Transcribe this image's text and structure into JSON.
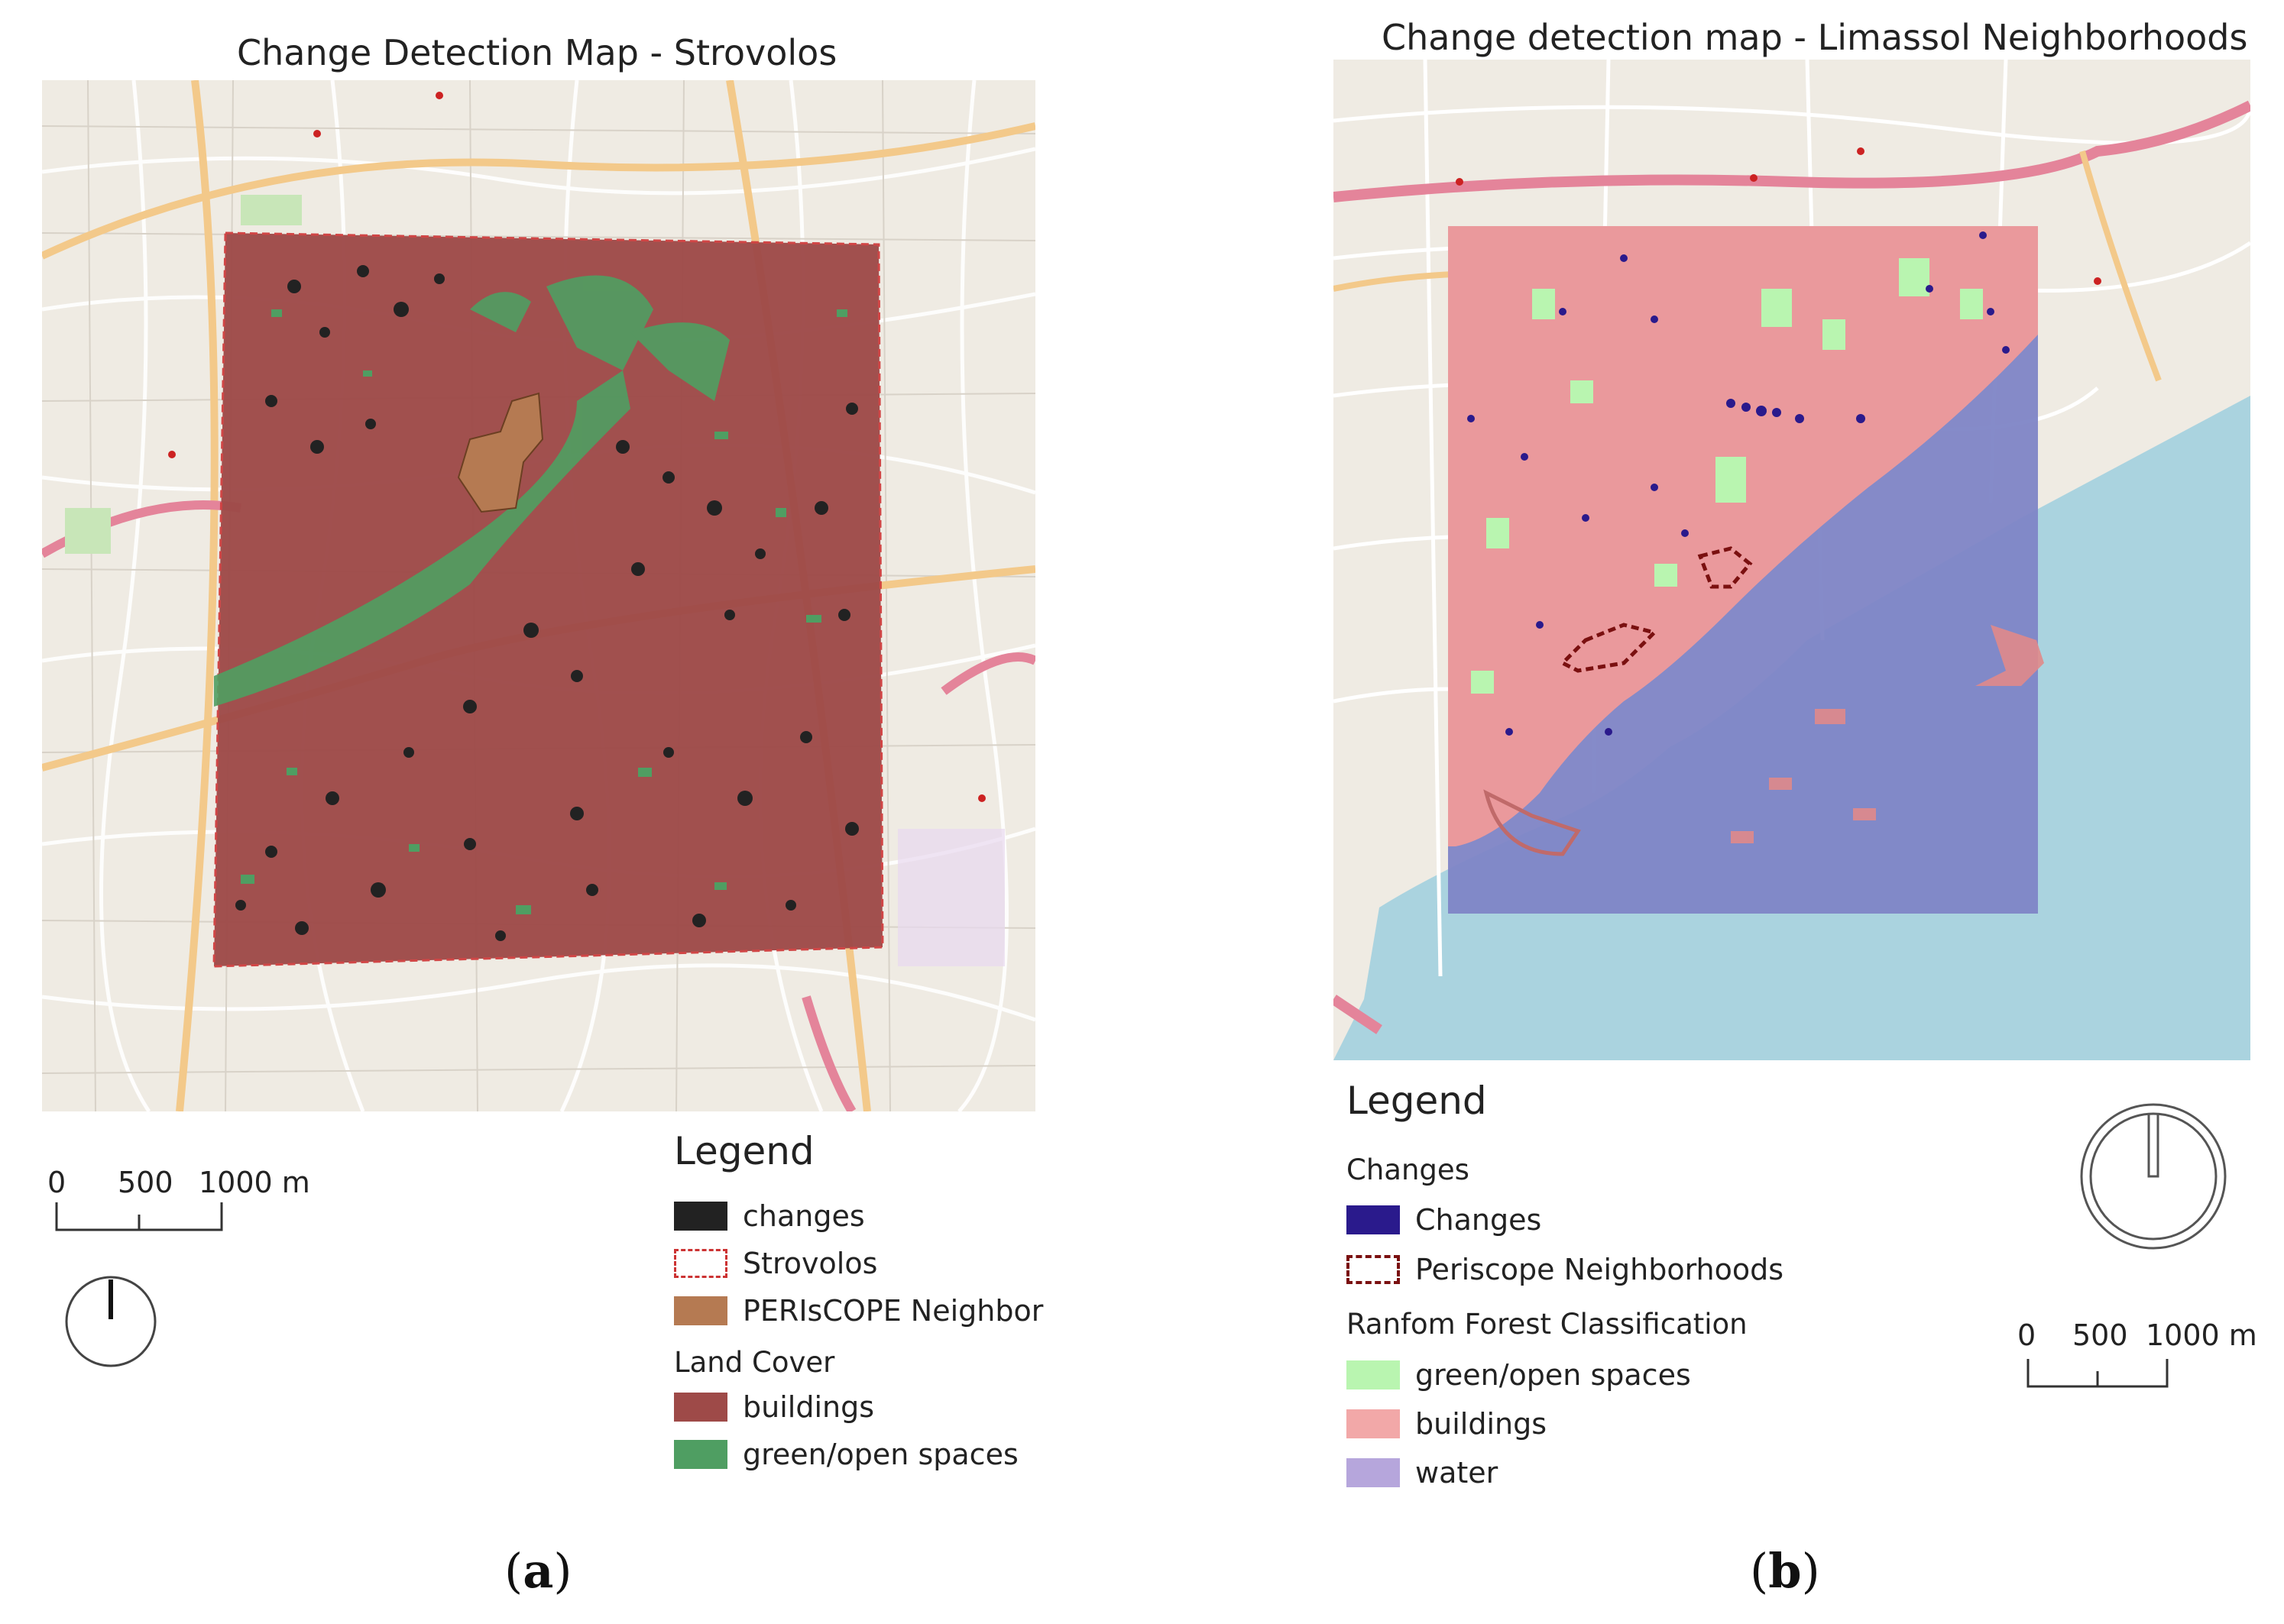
{
  "panels": [
    {
      "title": "Change Detection Map - Strovolos",
      "legend": {
        "title": "Legend",
        "items": [
          {
            "label": "changes",
            "color": "#222222",
            "style": "fill"
          },
          {
            "label": "Strovolos",
            "color": "#cc3333",
            "style": "dashed"
          },
          {
            "label": "PERIsCOPE Neighbor",
            "color": "#b57a52",
            "style": "fill"
          }
        ],
        "group_title": "Land Cover",
        "group_items": [
          {
            "label": "buildings",
            "color": "#9e4a48",
            "style": "fill"
          },
          {
            "label": "green/open spaces",
            "color": "#4f9e62",
            "style": "fill"
          }
        ]
      },
      "scale": {
        "ticks": [
          "0",
          "500",
          "1000 m"
        ]
      },
      "label_paren_open": "(",
      "label_letter": "a",
      "label_paren_close": ")",
      "north_arrow": "north-arrow-icon"
    },
    {
      "title": "Change detection map - Limassol Neighborhoods",
      "legend": {
        "title": "Legend",
        "group1_title": "Changes",
        "items": [
          {
            "label": "Changes",
            "color": "#2a1a8c",
            "style": "fill"
          },
          {
            "label": "Periscope Neighborhoods",
            "color": "#7a1010",
            "style": "dashed"
          }
        ],
        "group_title": "Ranfom Forest Classification",
        "group_items": [
          {
            "label": "green/open spaces",
            "color": "#b9f5b0",
            "style": "fill"
          },
          {
            "label": "buildings",
            "color": "#f2a8a8",
            "style": "fill"
          },
          {
            "label": "water",
            "color": "#b6a6dc",
            "style": "fill"
          }
        ]
      },
      "scale": {
        "ticks": [
          "0",
          "500",
          "1000 m"
        ]
      },
      "label_paren_open": "(",
      "label_letter": "b",
      "label_paren_close": ")",
      "north_arrow": "north-arrow-icon"
    }
  ],
  "colors": {
    "basemap_land": "#efebe3",
    "basemap_sea": "#aad3df",
    "road_major": "#f3c98a",
    "road_motorway": "#e4849a",
    "strovolos_buildings": "#9e4a48",
    "limassol_buildings": "#ee9a9a",
    "limassol_water": "#7e85c6"
  }
}
